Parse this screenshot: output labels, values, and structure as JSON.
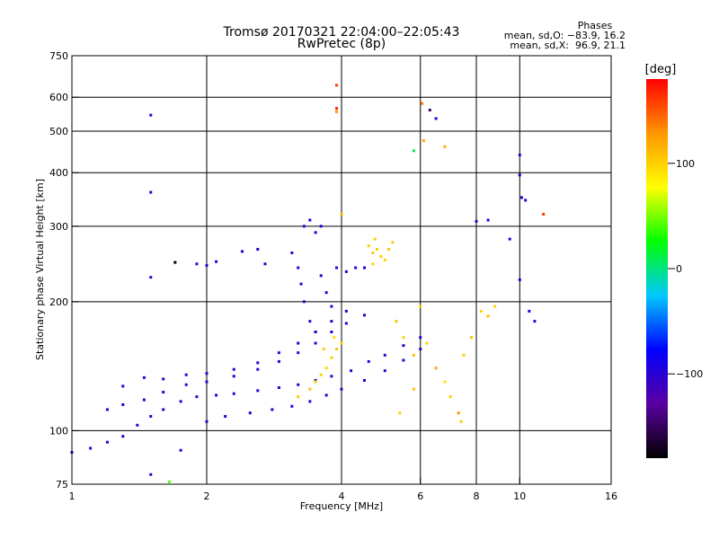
{
  "header": {
    "title": "Tromsø 20170321 22:04:00–22:05:43",
    "subtitle": "RwPretec (8p)",
    "stats_heading": "Phases",
    "stats_o": "mean, sd,O: −83.9, 16.2",
    "stats_x": "mean, sd,X:  96.9, 21.1"
  },
  "colorbar": {
    "title": "[deg]",
    "tick_labels": [
      "100",
      "0",
      "−100"
    ],
    "tick_values": [
      100,
      0,
      -100
    ],
    "range": [
      -180,
      180
    ],
    "colors": [
      "#000000",
      "#5a00a0",
      "#0000ff",
      "#00c8ff",
      "#00ff00",
      "#ffff00",
      "#ff9600",
      "#ff0000"
    ]
  },
  "chart_data": {
    "type": "scatter",
    "title": "Tromsø 20170321 22:04:00–22:05:43",
    "subtitle": "RwPretec (8p)",
    "xlabel": "Frequency [MHz]",
    "ylabel": "Stationary phase Virtual Height [km]",
    "x_scale": "log",
    "y_scale": "log",
    "xlim": [
      1,
      16
    ],
    "ylim": [
      75,
      750
    ],
    "x_ticks": [
      1,
      2,
      4,
      6,
      8,
      10,
      16
    ],
    "x_tick_labels": [
      "1",
      "2",
      "4",
      "6",
      "8",
      "10",
      "16"
    ],
    "y_ticks": [
      75,
      100,
      200,
      300,
      400,
      500,
      600,
      750
    ],
    "y_tick_labels": [
      "75",
      "100",
      "200",
      "300",
      "400",
      "500",
      "600",
      "750"
    ],
    "x_grid": [
      2,
      4,
      6,
      8,
      10
    ],
    "y_grid": [
      100,
      200,
      300,
      400,
      500,
      600
    ],
    "grid": true,
    "color_variable": "phase [deg]",
    "series": [
      {
        "points": [
          [
            1.0,
            89,
            -100
          ],
          [
            1.1,
            91,
            -100
          ],
          [
            1.2,
            94,
            -105
          ],
          [
            1.3,
            97,
            -100
          ],
          [
            1.4,
            103,
            -100
          ],
          [
            1.5,
            108,
            -100
          ],
          [
            1.6,
            112,
            -105
          ],
          [
            1.75,
            117,
            -100
          ],
          [
            1.9,
            120,
            -100
          ],
          [
            2.1,
            121,
            -100
          ],
          [
            2.3,
            122,
            -100
          ],
          [
            2.6,
            124,
            -100
          ],
          [
            2.9,
            126,
            -100
          ],
          [
            3.2,
            128,
            -100
          ],
          [
            3.5,
            131,
            -100
          ],
          [
            3.8,
            134,
            -100
          ],
          [
            4.2,
            138,
            -100
          ],
          [
            4.6,
            145,
            -100
          ],
          [
            5.0,
            150,
            -105
          ],
          [
            5.5,
            158,
            -100
          ],
          [
            6.0,
            165,
            -100
          ]
        ]
      },
      {
        "points": [
          [
            1.2,
            112,
            -100
          ],
          [
            1.3,
            115,
            -100
          ],
          [
            1.45,
            118,
            -100
          ],
          [
            1.6,
            123,
            -100
          ],
          [
            1.8,
            128,
            -100
          ],
          [
            2.0,
            130,
            -100
          ],
          [
            2.3,
            134,
            -100
          ],
          [
            2.6,
            139,
            -100
          ],
          [
            2.9,
            145,
            -100
          ],
          [
            3.2,
            152,
            -100
          ],
          [
            3.5,
            160,
            -100
          ],
          [
            3.8,
            170,
            -100
          ],
          [
            4.1,
            178,
            -100
          ],
          [
            4.5,
            186,
            -100
          ]
        ]
      },
      {
        "points": [
          [
            1.3,
            127,
            -100
          ],
          [
            1.45,
            133,
            -100
          ],
          [
            1.6,
            132,
            -100
          ],
          [
            1.8,
            135,
            -100
          ],
          [
            2.0,
            136,
            -100
          ],
          [
            2.3,
            139,
            -100
          ],
          [
            2.6,
            144,
            -100
          ],
          [
            2.9,
            152,
            -100
          ],
          [
            3.2,
            160,
            -100
          ],
          [
            3.5,
            170,
            -100
          ],
          [
            3.8,
            180,
            -100
          ],
          [
            4.1,
            190,
            -100
          ]
        ]
      },
      {
        "points": [
          [
            2.0,
            105,
            -100
          ],
          [
            2.2,
            108,
            -100
          ],
          [
            2.5,
            110,
            -100
          ],
          [
            2.8,
            112,
            -100
          ],
          [
            3.1,
            114,
            -100
          ],
          [
            3.4,
            117,
            -100
          ],
          [
            3.7,
            121,
            -100
          ],
          [
            4.0,
            125,
            -100
          ],
          [
            4.5,
            131,
            -100
          ],
          [
            5.0,
            138,
            -100
          ],
          [
            5.5,
            146,
            -100
          ],
          [
            6.0,
            155,
            -100
          ]
        ]
      },
      {
        "points": [
          [
            3.1,
            260,
            -100
          ],
          [
            3.2,
            240,
            -100
          ],
          [
            3.25,
            220,
            -100
          ],
          [
            3.3,
            200,
            -100
          ],
          [
            3.4,
            180,
            -100
          ],
          [
            3.5,
            170,
            -105
          ],
          [
            3.6,
            230,
            -100
          ],
          [
            3.7,
            210,
            -100
          ],
          [
            3.8,
            195,
            -100
          ],
          [
            3.3,
            300,
            -100
          ],
          [
            3.4,
            310,
            -100
          ],
          [
            3.5,
            290,
            -100
          ],
          [
            3.6,
            300,
            -100
          ],
          [
            3.9,
            240,
            -100
          ],
          [
            4.1,
            235,
            -100
          ],
          [
            4.3,
            240,
            -100
          ],
          [
            4.5,
            240,
            -100
          ]
        ]
      },
      {
        "points": [
          [
            3.2,
            120,
            100
          ],
          [
            3.4,
            125,
            110
          ],
          [
            3.5,
            130,
            100
          ],
          [
            3.6,
            135,
            100
          ],
          [
            3.7,
            140,
            95
          ],
          [
            3.8,
            148,
            100
          ],
          [
            3.9,
            155,
            110
          ],
          [
            4.0,
            160,
            100
          ],
          [
            3.65,
            155,
            100
          ],
          [
            3.85,
            165,
            95
          ],
          [
            4.6,
            270,
            100
          ],
          [
            4.7,
            260,
            105
          ],
          [
            4.8,
            265,
            100
          ],
          [
            4.9,
            255,
            100
          ],
          [
            5.0,
            250,
            100
          ],
          [
            5.1,
            265,
            105
          ],
          [
            5.2,
            275,
            100
          ],
          [
            4.7,
            245,
            100
          ],
          [
            4.75,
            280,
            100
          ]
        ]
      },
      {
        "points": [
          [
            5.3,
            180,
            110
          ],
          [
            5.5,
            165,
            100
          ],
          [
            5.8,
            150,
            110
          ],
          [
            6.2,
            160,
            100
          ],
          [
            6.5,
            140,
            120
          ],
          [
            6.8,
            130,
            90
          ],
          [
            7.0,
            120,
            100
          ],
          [
            7.3,
            110,
            130
          ],
          [
            7.5,
            150,
            100
          ],
          [
            7.8,
            165,
            110
          ],
          [
            8.2,
            190,
            100
          ],
          [
            8.5,
            185,
            110
          ],
          [
            8.8,
            195,
            100
          ],
          [
            6.0,
            195,
            100
          ],
          [
            5.8,
            125,
            110
          ],
          [
            5.4,
            110,
            100
          ],
          [
            7.4,
            105,
            100
          ]
        ]
      },
      {
        "points": [
          [
            1.5,
            545,
            -100
          ],
          [
            1.5,
            360,
            -100
          ],
          [
            1.5,
            228,
            -100
          ],
          [
            1.75,
            90,
            -100
          ],
          [
            1.7,
            247,
            -180
          ],
          [
            1.9,
            245,
            -100
          ],
          [
            2.0,
            243,
            -100
          ],
          [
            2.1,
            248,
            -100
          ],
          [
            2.4,
            262,
            -100
          ],
          [
            2.6,
            265,
            -100
          ],
          [
            2.7,
            245,
            -100
          ],
          [
            1.5,
            79,
            -100
          ],
          [
            1.65,
            76,
            40
          ]
        ]
      },
      {
        "points": [
          [
            3.9,
            640,
            160
          ],
          [
            3.9,
            565,
            170
          ],
          [
            3.9,
            555,
            130
          ],
          [
            4.0,
            320,
            110
          ],
          [
            6.05,
            580,
            140
          ],
          [
            6.1,
            475,
            120
          ],
          [
            6.3,
            560,
            -150
          ],
          [
            6.5,
            535,
            -100
          ],
          [
            6.8,
            460,
            120
          ],
          [
            5.8,
            450,
            10
          ],
          [
            10.0,
            440,
            -100
          ],
          [
            10.0,
            395,
            -100
          ],
          [
            10.3,
            345,
            -100
          ],
          [
            10.1,
            350,
            -100
          ],
          [
            11.3,
            320,
            160
          ],
          [
            8.0,
            308,
            -100
          ],
          [
            8.5,
            310,
            -100
          ],
          [
            9.5,
            280,
            -100
          ],
          [
            10.0,
            225,
            -100
          ],
          [
            10.5,
            190,
            -100
          ],
          [
            10.8,
            180,
            -100
          ]
        ]
      }
    ]
  }
}
